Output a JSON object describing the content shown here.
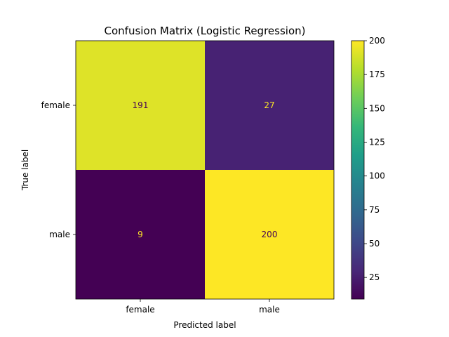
{
  "chart_data": {
    "type": "heatmap",
    "title": "Confusion Matrix (Logistic Regression)",
    "xlabel": "Predicted label",
    "ylabel": "True label",
    "x_categories": [
      "female",
      "male"
    ],
    "y_categories": [
      "female",
      "male"
    ],
    "matrix": [
      [
        191,
        27
      ],
      [
        9,
        200
      ]
    ],
    "colormap": "viridis",
    "colorbar": {
      "vmin": 9,
      "vmax": 200,
      "ticks": [
        25,
        50,
        75,
        100,
        125,
        150,
        175,
        200
      ]
    },
    "grid": false
  }
}
